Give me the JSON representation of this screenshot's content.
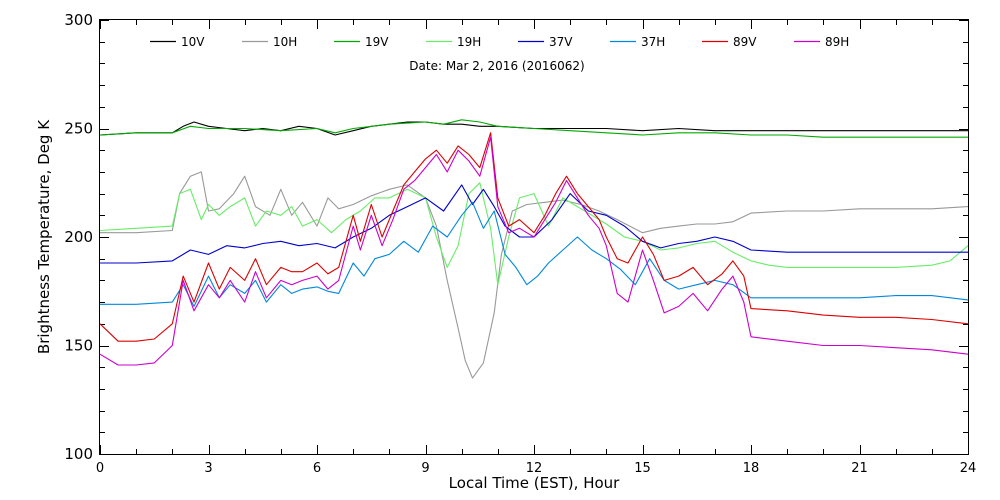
{
  "chart_data": {
    "type": "line",
    "title": "Date: Mar  2, 2016 (2016062)",
    "xlabel": "Local Time (EST), Hour",
    "ylabel": "Brightness Temperature, Deg K",
    "xlim": [
      0,
      24
    ],
    "ylim": [
      100,
      300
    ],
    "xticks": [
      0,
      3,
      6,
      9,
      12,
      15,
      18,
      21,
      24
    ],
    "yticks": [
      100,
      150,
      200,
      250,
      300
    ],
    "x_tick_labels": [
      "0",
      "3",
      "6",
      "9",
      "12",
      "15",
      "18",
      "21",
      "24"
    ],
    "y_tick_labels": [
      "100",
      "150",
      "200",
      "250",
      "300"
    ],
    "grid": false,
    "legend_placement": "top",
    "series": [
      {
        "name": "10V",
        "color": "#000000",
        "x": [
          0,
          1,
          2,
          2.3,
          2.6,
          3,
          3.5,
          4,
          4.5,
          5,
          5.5,
          6,
          6.5,
          7,
          7.5,
          8,
          8.5,
          9,
          9.5,
          10,
          10.5,
          11,
          12,
          13,
          14,
          15,
          16,
          17,
          18,
          19,
          20,
          21,
          22,
          23,
          24
        ],
        "values": [
          247,
          248,
          248,
          251,
          253,
          251,
          250,
          249,
          250,
          249,
          251,
          250,
          247,
          249,
          251,
          252,
          253,
          253,
          252,
          252,
          251,
          251,
          250,
          250,
          250,
          249,
          250,
          249,
          249,
          249,
          249,
          249,
          249,
          249,
          249
        ]
      },
      {
        "name": "10H",
        "color": "#999999",
        "x": [
          0,
          1,
          2,
          2.2,
          2.5,
          2.8,
          3,
          3.3,
          3.7,
          4,
          4.3,
          4.7,
          5,
          5.3,
          5.6,
          6,
          6.3,
          6.6,
          7,
          7.5,
          8,
          8.5,
          9,
          9.3,
          9.6,
          9.9,
          10.1,
          10.3,
          10.6,
          10.9,
          11.1,
          11.4,
          11.8,
          12.3,
          12.8,
          13.3,
          13.8,
          14.3,
          15,
          15.5,
          16,
          16.5,
          17,
          17.5,
          18,
          19,
          20,
          21,
          22,
          23,
          24
        ],
        "values": [
          202,
          202,
          203,
          220,
          228,
          230,
          212,
          213,
          220,
          228,
          214,
          210,
          222,
          210,
          216,
          205,
          218,
          213,
          215,
          219,
          222,
          224,
          218,
          205,
          180,
          158,
          143,
          135,
          142,
          165,
          192,
          212,
          215,
          216,
          217,
          215,
          212,
          208,
          202,
          204,
          205,
          206,
          206,
          207,
          211,
          212,
          212,
          213,
          213,
          213,
          214
        ]
      },
      {
        "name": "19V",
        "color": "#00aa00",
        "x": [
          0,
          1,
          2,
          2.5,
          3,
          4,
          5,
          6,
          6.5,
          7,
          8,
          9,
          9.5,
          10,
          10.5,
          11,
          12,
          13,
          14,
          15,
          16,
          17,
          18,
          19,
          20,
          21,
          22,
          23,
          24
        ],
        "values": [
          247,
          248,
          248,
          251,
          250,
          250,
          249,
          250,
          248,
          250,
          252,
          253,
          252,
          254,
          253,
          251,
          250,
          249,
          248,
          247,
          248,
          248,
          247,
          247,
          246,
          246,
          246,
          246,
          246
        ]
      },
      {
        "name": "19H",
        "color": "#66ee66",
        "x": [
          0,
          1,
          2,
          2.2,
          2.5,
          2.8,
          3,
          3.3,
          3.6,
          4,
          4.3,
          4.6,
          5,
          5.3,
          5.6,
          6,
          6.4,
          6.8,
          7.2,
          7.6,
          8,
          8.5,
          9,
          9.3,
          9.6,
          9.9,
          10.2,
          10.5,
          10.8,
          11,
          11.3,
          11.6,
          12,
          12.4,
          12.8,
          13.2,
          13.6,
          14,
          14.5,
          15,
          15.5,
          16,
          16.5,
          17,
          17.5,
          18,
          18.5,
          19,
          20,
          21,
          22,
          23,
          23.5,
          24
        ],
        "values": [
          203,
          204,
          205,
          220,
          222,
          208,
          215,
          210,
          214,
          218,
          205,
          212,
          210,
          214,
          205,
          208,
          202,
          208,
          212,
          218,
          218,
          222,
          218,
          200,
          186,
          196,
          220,
          225,
          204,
          178,
          200,
          218,
          220,
          205,
          218,
          214,
          210,
          206,
          200,
          198,
          194,
          195,
          197,
          198,
          193,
          189,
          187,
          186,
          186,
          186,
          186,
          187,
          189,
          196
        ]
      },
      {
        "name": "37V",
        "color": "#0000cc",
        "x": [
          0,
          1,
          2,
          2.5,
          3,
          3.5,
          4,
          4.5,
          5,
          5.5,
          6,
          6.5,
          7,
          7.5,
          8,
          8.5,
          9,
          9.5,
          10,
          10.3,
          10.6,
          10.9,
          11.2,
          11.6,
          12,
          12.5,
          13,
          13.5,
          14,
          14.5,
          15,
          15.5,
          16,
          16.5,
          17,
          17.5,
          18,
          19,
          20,
          21,
          22,
          23,
          24
        ],
        "values": [
          188,
          188,
          189,
          194,
          192,
          196,
          195,
          197,
          198,
          196,
          197,
          195,
          200,
          204,
          210,
          214,
          218,
          212,
          224,
          215,
          222,
          214,
          205,
          200,
          200,
          208,
          220,
          212,
          210,
          205,
          198,
          195,
          197,
          198,
          200,
          198,
          194,
          193,
          193,
          193,
          193,
          193,
          193
        ]
      },
      {
        "name": "37H",
        "color": "#0088dd",
        "x": [
          0,
          1,
          2,
          2.3,
          2.6,
          3,
          3.3,
          3.6,
          4,
          4.3,
          4.6,
          5,
          5.3,
          5.6,
          6,
          6.3,
          6.6,
          7,
          7.3,
          7.6,
          8,
          8.4,
          8.8,
          9.2,
          9.6,
          10,
          10.3,
          10.6,
          10.9,
          11.2,
          11.5,
          11.8,
          12.1,
          12.4,
          12.8,
          13.2,
          13.6,
          14,
          14.4,
          14.8,
          15.2,
          15.6,
          16,
          16.5,
          17,
          17.5,
          18,
          19,
          20,
          21,
          22,
          23,
          24
        ],
        "values": [
          169,
          169,
          170,
          178,
          168,
          182,
          172,
          178,
          174,
          180,
          170,
          178,
          174,
          176,
          177,
          175,
          174,
          188,
          182,
          190,
          192,
          198,
          193,
          205,
          200,
          210,
          216,
          204,
          212,
          192,
          186,
          178,
          182,
          188,
          194,
          200,
          194,
          190,
          185,
          178,
          190,
          180,
          176,
          178,
          180,
          178,
          172,
          172,
          172,
          172,
          173,
          173,
          171
        ]
      },
      {
        "name": "89V",
        "color": "#dd0000",
        "x": [
          0,
          0.5,
          1,
          1.5,
          2,
          2.3,
          2.6,
          3,
          3.3,
          3.6,
          4,
          4.3,
          4.6,
          5,
          5.3,
          5.6,
          6,
          6.3,
          6.6,
          7,
          7.2,
          7.5,
          7.8,
          8.1,
          8.4,
          8.7,
          9,
          9.3,
          9.6,
          9.9,
          10.2,
          10.5,
          10.8,
          11,
          11.3,
          11.6,
          12,
          12.3,
          12.6,
          12.9,
          13.2,
          13.5,
          13.8,
          14,
          14.3,
          14.6,
          15,
          15.3,
          15.6,
          16,
          16.4,
          16.8,
          17.2,
          17.5,
          17.8,
          18,
          19,
          20,
          21,
          22,
          23,
          24
        ],
        "values": [
          160,
          152,
          152,
          153,
          160,
          182,
          170,
          188,
          176,
          186,
          180,
          190,
          178,
          186,
          184,
          184,
          188,
          183,
          186,
          210,
          198,
          215,
          200,
          212,
          224,
          230,
          236,
          240,
          234,
          242,
          238,
          232,
          248,
          218,
          205,
          208,
          202,
          210,
          220,
          228,
          220,
          214,
          208,
          200,
          190,
          188,
          200,
          192,
          180,
          182,
          186,
          178,
          183,
          189,
          182,
          167,
          166,
          164,
          163,
          163,
          162,
          160
        ]
      },
      {
        "name": "89H",
        "color": "#cc00cc",
        "x": [
          0,
          0.5,
          1,
          1.5,
          2,
          2.3,
          2.6,
          3,
          3.3,
          3.6,
          4,
          4.3,
          4.6,
          5,
          5.3,
          5.6,
          6,
          6.3,
          6.6,
          7,
          7.2,
          7.5,
          7.8,
          8.1,
          8.4,
          8.7,
          9,
          9.3,
          9.6,
          9.9,
          10.2,
          10.5,
          10.8,
          11,
          11.3,
          11.6,
          12,
          12.3,
          12.6,
          12.9,
          13.2,
          13.5,
          13.8,
          14,
          14.3,
          14.6,
          15,
          15.3,
          15.6,
          16,
          16.4,
          16.8,
          17.2,
          17.5,
          17.8,
          18,
          19,
          20,
          21,
          22,
          23,
          24
        ],
        "values": [
          146,
          141,
          141,
          142,
          150,
          180,
          166,
          178,
          172,
          180,
          170,
          184,
          172,
          180,
          178,
          180,
          182,
          176,
          180,
          205,
          194,
          210,
          196,
          208,
          222,
          226,
          232,
          238,
          230,
          240,
          235,
          228,
          246,
          214,
          202,
          204,
          200,
          208,
          216,
          226,
          218,
          210,
          204,
          196,
          174,
          170,
          194,
          180,
          165,
          168,
          174,
          166,
          176,
          182,
          170,
          154,
          152,
          150,
          150,
          149,
          148,
          146
        ]
      }
    ]
  }
}
